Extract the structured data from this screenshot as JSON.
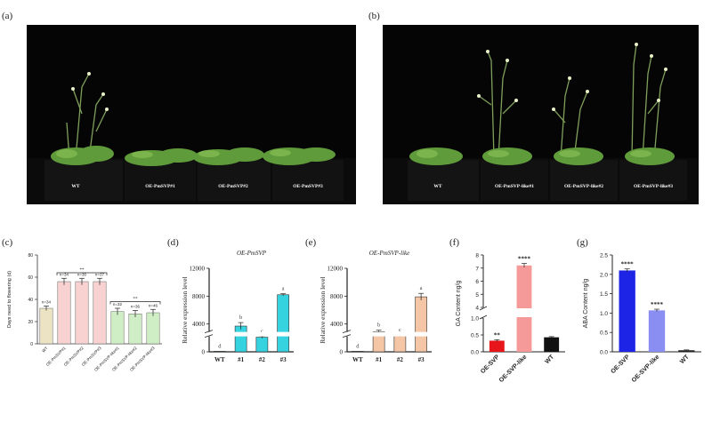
{
  "panel_labels": [
    "(a)",
    "(b)",
    "(c)",
    "(d)",
    "(e)",
    "(f)",
    "(g)"
  ],
  "photo_a": {
    "labels": [
      "WT",
      "OE-PmSVP#1",
      "OE-PmSVP#2",
      "OE-PmSVP#3"
    ]
  },
  "photo_b": {
    "labels": [
      "WT",
      "OE-PmSVP-like#1",
      "OE-PmSVP-like#2",
      "OE-PmSVP-like#3"
    ]
  },
  "chart_data": [
    {
      "id": "c",
      "type": "bar",
      "ylabel": "Days need to flowering (d)",
      "ylim": [
        0,
        80
      ],
      "yticks": [
        0,
        20,
        40,
        60,
        80
      ],
      "categories": [
        "WT",
        "OE-PmSVP#1",
        "OE-PmSVP#2",
        "OE-PmSVP#3",
        "OE-PmSVP-like#1",
        "OE-PmSVP-like#2",
        "OE-PmSVP-like#3"
      ],
      "values": [
        32,
        56,
        56,
        56,
        29,
        27,
        28
      ],
      "errors": [
        2,
        3,
        3,
        3,
        3,
        3,
        3
      ],
      "n_labels": [
        "n=34",
        "n=34",
        "n=30",
        "n=37",
        "n=32",
        "n=36",
        "n=46"
      ],
      "significance": [
        "**",
        "**"
      ],
      "colors": [
        "#ece3c4",
        "#f7d2d0",
        "#f7d2d0",
        "#f7d2d0",
        "#cfeec6",
        "#cfeec6",
        "#cfeec6"
      ]
    },
    {
      "id": "d",
      "type": "bar",
      "title": "OE-PmSVP",
      "ylabel": "Relative expression level",
      "ylim": [
        0,
        12000
      ],
      "yticks": [
        0,
        4000,
        8000,
        12000
      ],
      "categories": [
        "WT",
        "#1",
        "#2",
        "#3"
      ],
      "values": [
        1,
        3700,
        2100,
        8200
      ],
      "errors": [
        0,
        500,
        150,
        150
      ],
      "letters": [
        "d",
        "b",
        "c",
        "a"
      ],
      "color": "#35d2e0"
    },
    {
      "id": "e",
      "type": "bar",
      "title": "OE-PmSVP-like",
      "ylabel": "Relative expression level",
      "ylim": [
        0,
        12000
      ],
      "yticks": [
        0,
        4000,
        8000,
        12000
      ],
      "categories": [
        "WT",
        "#1",
        "#2",
        "#3"
      ],
      "values": [
        1,
        2900,
        2300,
        7900
      ],
      "errors": [
        0,
        200,
        100,
        500
      ],
      "letters": [
        "d",
        "b",
        "c",
        "a"
      ],
      "color": "#f5c6a5"
    },
    {
      "id": "f",
      "type": "bar",
      "ylabel": "GA Content ng/g",
      "ylim": [
        0,
        8
      ],
      "yticks": [
        "0.0",
        "0.5",
        "1.0",
        "4",
        "5",
        "6",
        "7",
        "8"
      ],
      "categories": [
        "OE-SVP",
        "OE-SVP-like",
        "WT"
      ],
      "values": [
        0.33,
        7.2,
        0.43
      ],
      "errors": [
        0.03,
        0.15,
        0.02
      ],
      "significance": [
        "**",
        "****",
        ""
      ],
      "colors": [
        "#e8151a",
        "#f59a98",
        "#111111"
      ]
    },
    {
      "id": "g",
      "type": "bar",
      "ylabel": "ABA Content ng/g",
      "ylim": [
        0,
        2.5
      ],
      "yticks": [
        "0.0",
        "0.5",
        "1.0",
        "1.5",
        "2.0",
        "2.5"
      ],
      "categories": [
        "OE-SVP",
        "OE-SVP-like",
        "WT"
      ],
      "values": [
        2.1,
        1.07,
        0.04
      ],
      "errors": [
        0.04,
        0.03,
        0.01
      ],
      "significance": [
        "****",
        "****",
        ""
      ],
      "colors": [
        "#1e24e6",
        "#8a8ef2",
        "#222222"
      ]
    }
  ]
}
